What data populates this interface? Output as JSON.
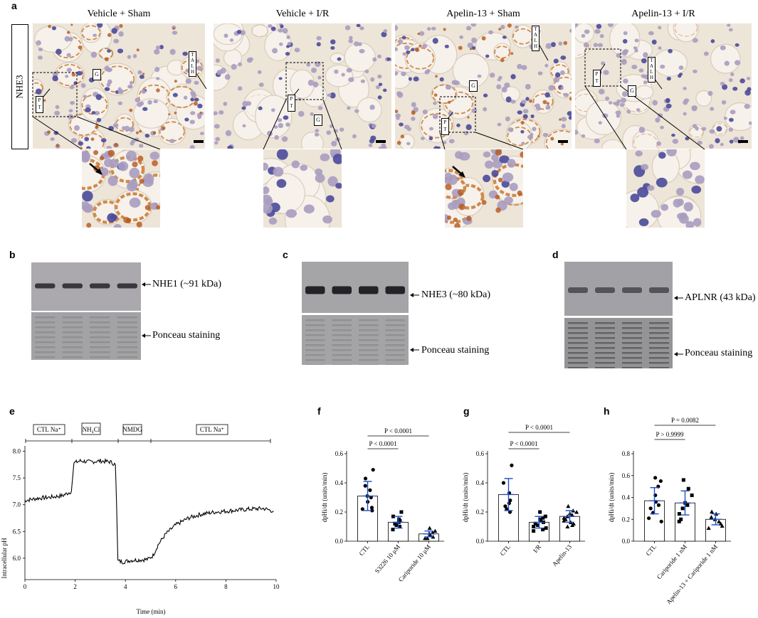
{
  "panels": {
    "a": {
      "letter": "a",
      "row_label": "NHE3",
      "conditions": [
        "Vehicle + Sham",
        "Vehicle + I/R",
        "Apelin-13 + Sham",
        "Apelin-13 + I/R"
      ],
      "labels": {
        "g": "G",
        "pt": "P T",
        "talh": "T A L H"
      }
    },
    "b": {
      "letter": "b",
      "band": "NHE1 (~91 kDa)",
      "loading": "Ponceau staining"
    },
    "c": {
      "letter": "c",
      "band": "NHE3 (~80 kDa)",
      "loading": "Ponceau staining"
    },
    "d": {
      "letter": "d",
      "band": "APLNR (43 kDa)",
      "loading": "Ponceau staining"
    },
    "e": {
      "letter": "e",
      "phases": [
        "CTL Na⁺",
        "NH₄Cl",
        "NMDG",
        "CTL Na⁺"
      ],
      "ylabel": "Intracellular pH",
      "xlabel": "Time (min)",
      "yticks": [
        "6.0",
        "6.5",
        "7.0",
        "7.5",
        "8.0"
      ],
      "xticks": [
        "0",
        "2",
        "4",
        "6",
        "8",
        "10"
      ]
    },
    "f": {
      "letter": "f",
      "ylabel": "dpHi/dt (units/min)",
      "yticks": [
        "0.0",
        "0.2",
        "0.4",
        "0.6"
      ],
      "categories": [
        "CTL",
        "S3226 10 μM",
        "Cariporide 10 μM"
      ],
      "stats": [
        "P < 0.0001",
        "P < 0.0001"
      ]
    },
    "g": {
      "letter": "g",
      "ylabel": "dpHi/dt (units/min)",
      "yticks": [
        "0.0",
        "0.2",
        "0.4",
        "0.6"
      ],
      "categories": [
        "CTL",
        "I/R",
        "Apelin-13"
      ],
      "stats": [
        "P < 0.0001",
        "P < 0.0001"
      ]
    },
    "h": {
      "letter": "h",
      "ylabel": "dpHi/dt (units/min)",
      "yticks": [
        "0.0",
        "0.2",
        "0.4",
        "0.6",
        "0.8"
      ],
      "categories": [
        "CTL",
        "Cariporide 1 nM",
        "Apelin-13 + Cariporide 1 nM"
      ],
      "stats": [
        "P > 0.9999",
        "P = 0.0082"
      ]
    }
  },
  "chart_data": [
    {
      "panel": "e",
      "type": "line",
      "xlabel": "Time (min)",
      "ylabel": "Intracellular pH",
      "xlim": [
        0,
        10
      ],
      "ylim": [
        5.6,
        8.1
      ],
      "x": [
        0,
        0.5,
        1.0,
        1.5,
        1.85,
        1.95,
        2.2,
        2.6,
        3.0,
        3.4,
        3.6,
        3.65,
        3.7,
        3.9,
        4.2,
        4.6,
        4.9,
        5.1,
        5.3,
        5.6,
        6.0,
        6.5,
        7.0,
        7.5,
        8.0,
        8.5,
        9.0,
        9.5,
        9.9
      ],
      "y": [
        7.08,
        7.12,
        7.14,
        7.17,
        7.25,
        7.78,
        7.82,
        7.8,
        7.82,
        7.8,
        7.75,
        7.0,
        5.95,
        5.93,
        5.96,
        5.97,
        5.98,
        6.05,
        6.25,
        6.45,
        6.62,
        6.75,
        6.82,
        6.86,
        6.88,
        6.9,
        6.92,
        6.93,
        6.88
      ]
    },
    {
      "panel": "f",
      "type": "bar",
      "categories": [
        "CTL",
        "S3226 10 μM",
        "Cariporide 10 μM"
      ],
      "values": [
        0.31,
        0.13,
        0.05
      ],
      "errors": [
        0.1,
        0.04,
        0.02
      ],
      "ylim": [
        0,
        0.6
      ],
      "points": [
        [
          0.49,
          0.43,
          0.38,
          0.35,
          0.31,
          0.3,
          0.27,
          0.23,
          0.22,
          0.21
        ],
        [
          0.2,
          0.17,
          0.15,
          0.14,
          0.13,
          0.12,
          0.11,
          0.1,
          0.08
        ],
        [
          0.09,
          0.07,
          0.06,
          0.05,
          0.04,
          0.03,
          0.02,
          0.02
        ]
      ]
    },
    {
      "panel": "g",
      "type": "bar",
      "categories": [
        "CTL",
        "I/R",
        "Apelin-13"
      ],
      "values": [
        0.32,
        0.13,
        0.17
      ],
      "errors": [
        0.11,
        0.04,
        0.04
      ],
      "ylim": [
        0,
        0.6
      ],
      "points": [
        [
          0.52,
          0.4,
          0.33,
          0.28,
          0.26,
          0.24,
          0.22,
          0.2
        ],
        [
          0.2,
          0.17,
          0.16,
          0.15,
          0.14,
          0.13,
          0.12,
          0.11,
          0.1,
          0.09,
          0.08,
          0.07
        ],
        [
          0.24,
          0.21,
          0.2,
          0.19,
          0.18,
          0.17,
          0.16,
          0.15,
          0.14,
          0.13,
          0.12,
          0.11,
          0.1
        ]
      ]
    },
    {
      "panel": "h",
      "type": "bar",
      "categories": [
        "CTL",
        "Cariporide 1 nM",
        "Apelin-13 + Cariporide 1 nM"
      ],
      "values": [
        0.37,
        0.35,
        0.2
      ],
      "errors": [
        0.12,
        0.11,
        0.05
      ],
      "ylim": [
        0,
        0.8
      ],
      "points": [
        [
          0.58,
          0.55,
          0.5,
          0.42,
          0.36,
          0.33,
          0.3,
          0.26,
          0.21,
          0.18
        ],
        [
          0.56,
          0.48,
          0.42,
          0.35,
          0.33,
          0.3,
          0.25,
          0.2,
          0.18
        ],
        [
          0.27,
          0.25,
          0.22,
          0.2,
          0.18,
          0.16,
          0.14,
          0.12
        ]
      ]
    }
  ]
}
